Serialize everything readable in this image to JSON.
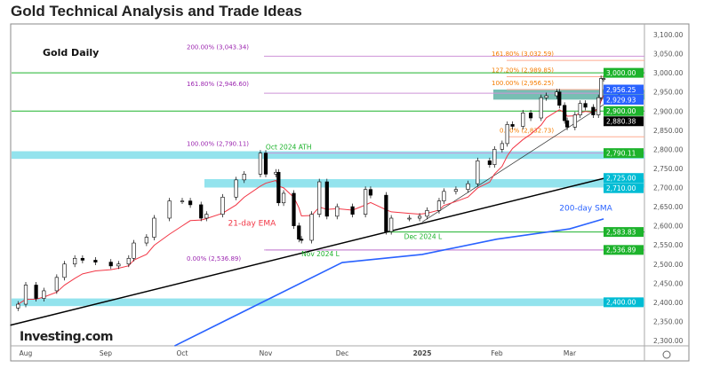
{
  "page_title": "Gold Technical Analysis and Trade Ideas",
  "chart_data": {
    "type": "candlestick",
    "title": "Gold Daily",
    "ylim": [
      2300,
      3100
    ],
    "yticks": [
      2300,
      2350,
      2400,
      2450,
      2500,
      2550,
      2600,
      2650,
      2700,
      2750,
      2800,
      2850,
      2900,
      2950,
      3000,
      3050,
      3100
    ],
    "ytick_labels": [
      "2,300.00",
      "2,350.00",
      "2,400.00",
      "2,450.00",
      "2,500.00",
      "2,550.00",
      "2,600.00",
      "2,650.00",
      "2,700.00",
      "2,750.00",
      "2,800.00",
      "2,850.00",
      "2,900.00",
      "2,950.00",
      "3,000.00",
      "3,050.00",
      "3,100.00"
    ],
    "xticks": [
      {
        "date": "2024-08-01",
        "label": "Aug"
      },
      {
        "date": "2024-09-01",
        "label": "Sep"
      },
      {
        "date": "2024-10-01",
        "label": "Oct"
      },
      {
        "date": "2024-11-01",
        "label": "Nov"
      },
      {
        "date": "2024-12-01",
        "label": "Dec"
      },
      {
        "date": "2025-01-01",
        "label": "2025"
      },
      {
        "date": "2025-02-01",
        "label": "Feb"
      },
      {
        "date": "2025-03-01",
        "label": "Mar"
      }
    ],
    "closes": [
      [
        "2024-07-29",
        2395
      ],
      [
        "2024-08-01",
        2445
      ],
      [
        "2024-08-05",
        2410
      ],
      [
        "2024-08-08",
        2430
      ],
      [
        "2024-08-13",
        2465
      ],
      [
        "2024-08-16",
        2500
      ],
      [
        "2024-08-20",
        2515
      ],
      [
        "2024-08-23",
        2510
      ],
      [
        "2024-08-28",
        2505
      ],
      [
        "2024-09-03",
        2495
      ],
      [
        "2024-09-06",
        2500
      ],
      [
        "2024-09-10",
        2515
      ],
      [
        "2024-09-12",
        2555
      ],
      [
        "2024-09-17",
        2570
      ],
      [
        "2024-09-20",
        2620
      ],
      [
        "2024-09-26",
        2665
      ],
      [
        "2024-10-01",
        2665
      ],
      [
        "2024-10-04",
        2655
      ],
      [
        "2024-10-08",
        2620
      ],
      [
        "2024-10-10",
        2630
      ],
      [
        "2024-10-16",
        2675
      ],
      [
        "2024-10-21",
        2720
      ],
      [
        "2024-10-24",
        2735
      ],
      [
        "2024-10-30",
        2790
      ],
      [
        "2024-11-01",
        2735
      ],
      [
        "2024-11-05",
        2740
      ],
      [
        "2024-11-06",
        2660
      ],
      [
        "2024-11-08",
        2685
      ],
      [
        "2024-11-12",
        2600
      ],
      [
        "2024-11-14",
        2565
      ],
      [
        "2024-11-15",
        2562
      ],
      [
        "2024-11-19",
        2630
      ],
      [
        "2024-11-22",
        2715
      ],
      [
        "2024-11-25",
        2625
      ],
      [
        "2024-11-29",
        2650
      ],
      [
        "2024-12-05",
        2630
      ],
      [
        "2024-12-10",
        2695
      ],
      [
        "2024-12-12",
        2680
      ],
      [
        "2024-12-18",
        2585
      ],
      [
        "2024-12-20",
        2620
      ],
      [
        "2024-12-27",
        2620
      ],
      [
        "2024-12-31",
        2625
      ],
      [
        "2025-01-03",
        2640
      ],
      [
        "2025-01-08",
        2665
      ],
      [
        "2025-01-10",
        2690
      ],
      [
        "2025-01-15",
        2695
      ],
      [
        "2025-01-20",
        2710
      ],
      [
        "2025-01-24",
        2770
      ],
      [
        "2025-01-29",
        2760
      ],
      [
        "2025-01-31",
        2800
      ],
      [
        "2025-02-03",
        2815
      ],
      [
        "2025-02-05",
        2865
      ],
      [
        "2025-02-07",
        2860
      ],
      [
        "2025-02-11",
        2895
      ],
      [
        "2025-02-14",
        2882
      ],
      [
        "2025-02-18",
        2935
      ],
      [
        "2025-02-20",
        2940
      ],
      [
        "2025-02-24",
        2950
      ],
      [
        "2025-02-25",
        2915
      ],
      [
        "2025-02-27",
        2875
      ],
      [
        "2025-02-28",
        2858
      ],
      [
        "2025-03-03",
        2890
      ],
      [
        "2025-03-05",
        2920
      ],
      [
        "2025-03-07",
        2910
      ],
      [
        "2025-03-10",
        2890
      ],
      [
        "2025-03-12",
        2935
      ],
      [
        "2025-03-13",
        2985
      ],
      [
        "2025-03-14",
        2985
      ]
    ],
    "sma200": {
      "label": "200-day SMA",
      "color": "#2962ff",
      "points": [
        [
          "2024-09-28",
          2286
        ],
        [
          "2024-12-01",
          2504
        ],
        [
          "2025-01-01",
          2525
        ],
        [
          "2025-02-01",
          2565
        ],
        [
          "2025-03-01",
          2592
        ],
        [
          "2025-03-14",
          2618
        ]
      ]
    },
    "ema21": {
      "label": "21-day EMA",
      "color": "#f23645"
    },
    "trendlines": [
      {
        "from": [
          "2024-07-26",
          2340
        ],
        "to": [
          "2025-03-20",
          2734
        ],
        "color": "#000"
      },
      {
        "from": [
          "2025-01-01",
          2610
        ],
        "to": [
          "2025-03-22",
          2952
        ],
        "color": "#333"
      }
    ],
    "zones": [
      {
        "low": 2390,
        "high": 2410,
        "color": "#80deea"
      },
      {
        "low": 2775,
        "high": 2795,
        "color": "#80deea"
      },
      {
        "low": 2700,
        "high": 2722,
        "color": "#80deea"
      },
      {
        "low": 2929.93,
        "high": 2956.25,
        "color": "#5fb3a6"
      }
    ],
    "hlines": [
      {
        "price": 3000,
        "color": "#1db32c"
      },
      {
        "price": 2900,
        "color": "#1db32c"
      },
      {
        "price": 2583.83,
        "color": "#1db32c",
        "from": "2024-12-18"
      },
      {
        "price": 2536.89,
        "color": "#9c27b0",
        "from": "2024-11-01"
      }
    ],
    "fib_purple": [
      {
        "label": "200.00% (3,043.34)",
        "price": 3043.34
      },
      {
        "label": "161.80% (2,946.60)",
        "price": 2946.6
      },
      {
        "label": "100.00% (2,790.11)",
        "price": 2790.11
      },
      {
        "label": "0.00% (2,536.89)",
        "price": 2536.89
      }
    ],
    "fib_orange": [
      {
        "label": "161.80% (3,032.59)",
        "price": 3032.59
      },
      {
        "label": "127.20% (2,989.85)",
        "price": 2989.85
      },
      {
        "label": "100.00% (2,956.25)",
        "price": 2956.25
      },
      {
        "label": "0.00% (2,832.73)",
        "price": 2832.73
      }
    ],
    "price_badges": [
      {
        "text": "3,000.00",
        "price": 3000,
        "color": "#1db32c"
      },
      {
        "text": "2,956.25",
        "price": 2956.25,
        "color": "#2962ff"
      },
      {
        "text": "2,929.93",
        "price": 2929.93,
        "color": "#2962ff"
      },
      {
        "text": "2,900.00",
        "price": 2900,
        "color": "#1db32c"
      },
      {
        "text": "2,880.38",
        "price": 2880.38,
        "color": "#000000"
      },
      {
        "text": "2,790.11",
        "price": 2790.11,
        "color": "#1db32c"
      },
      {
        "text": "2,725.00",
        "price": 2725,
        "color": "#00bcd4"
      },
      {
        "text": "2,710.00",
        "price": 2710,
        "color": "#00bcd4"
      },
      {
        "text": "2,583.83",
        "price": 2583.83,
        "color": "#1db32c"
      },
      {
        "text": "2,536.89",
        "price": 2536.89,
        "color": "#1db32c"
      },
      {
        "text": "2,400.00",
        "price": 2400,
        "color": "#00bcd4"
      }
    ],
    "annotations": [
      {
        "text": "Oct 2024 ATH",
        "date": "2024-10-30",
        "price": 2800,
        "color": "#1db32c"
      },
      {
        "text": "Nov 2024 L",
        "date": "2024-11-15",
        "price": 2520,
        "color": "#1db32c"
      },
      {
        "text": "Dec 2024 L",
        "date": "2024-12-25",
        "price": 2565,
        "color": "#1db32c"
      },
      {
        "text": "21-day EMA",
        "date": "2024-10-18",
        "price": 2600,
        "color": "#f23645"
      },
      {
        "text": "200-day SMA",
        "date": "2025-02-25",
        "price": 2640,
        "color": "#2962ff"
      }
    ],
    "watermark": "Investing.com"
  }
}
